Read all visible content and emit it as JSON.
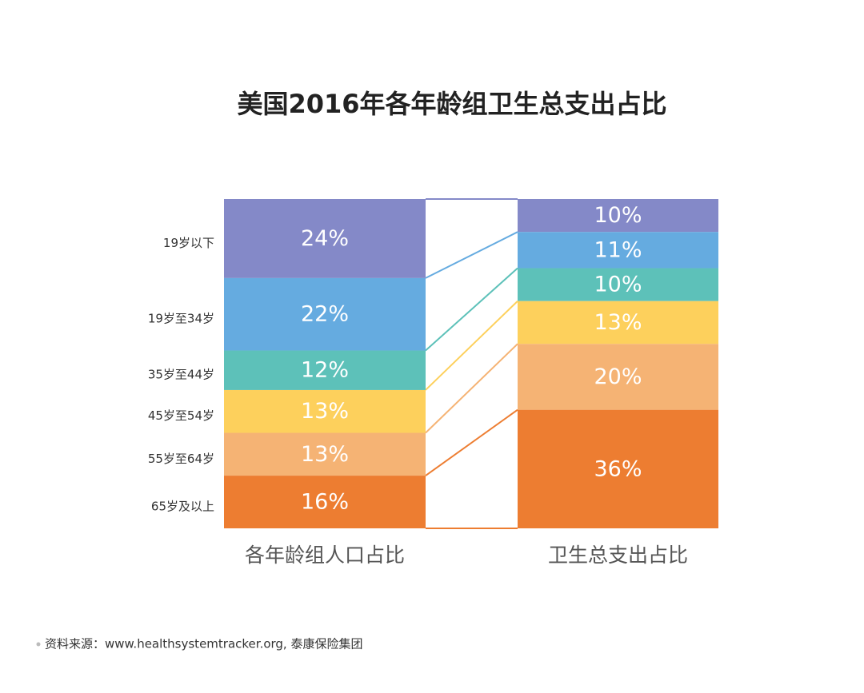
{
  "chart_data": {
    "type": "stacked_bar",
    "title": "美国2016年各年龄组卫生总支出占比",
    "categories": [
      "各年龄组人口占比",
      "卫生总支出占比"
    ],
    "series": [
      {
        "name": "19岁以下",
        "color": "#8489c8",
        "values": [
          24,
          10
        ],
        "value_labels": [
          "24%",
          "10%"
        ]
      },
      {
        "name": "19岁至34岁",
        "color": "#65abe0",
        "values": [
          22,
          11
        ],
        "value_labels": [
          "22%",
          "11%"
        ]
      },
      {
        "name": "35岁至44岁",
        "color": "#5dc1b9",
        "values": [
          12,
          10
        ],
        "value_labels": [
          "12%",
          "10%"
        ]
      },
      {
        "name": "45岁至54岁",
        "color": "#fdd05c",
        "values": [
          13,
          13
        ],
        "value_labels": [
          "13%",
          "13%"
        ]
      },
      {
        "name": "55岁至64岁",
        "color": "#f5b374",
        "values": [
          13,
          20
        ],
        "value_labels": [
          "13%",
          "20%"
        ]
      },
      {
        "name": "65岁及以上",
        "color": "#ed7d31",
        "values": [
          16,
          36
        ],
        "value_labels": [
          "16%",
          "36%"
        ]
      }
    ],
    "source": "资料来源：www.healthsystemtracker.org, 泰康保险集团"
  }
}
